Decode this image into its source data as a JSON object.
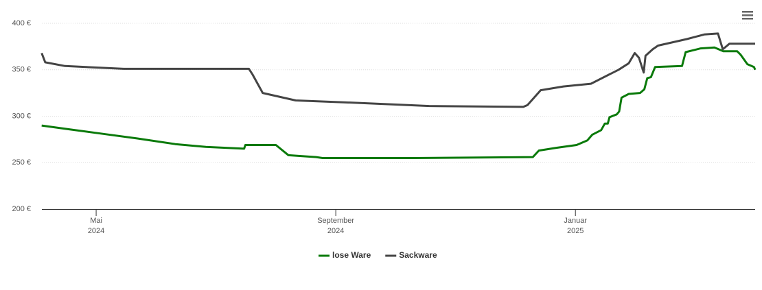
{
  "chart_data": {
    "type": "line",
    "xlim": [
      4.094,
      16.0
    ],
    "xticks": [
      {
        "value": 5,
        "label": [
          "Mai",
          "2024"
        ]
      },
      {
        "value": 9,
        "label": [
          "September",
          "2024"
        ]
      },
      {
        "value": 13,
        "label": [
          "Januar",
          "2025"
        ]
      }
    ],
    "ylim": [
      200,
      400
    ],
    "yticks": [
      {
        "value": 200,
        "label": "200 €"
      },
      {
        "value": 250,
        "label": "250 €"
      },
      {
        "value": 300,
        "label": "300 €"
      },
      {
        "value": 350,
        "label": "350 €"
      },
      {
        "value": 400,
        "label": "400 €"
      }
    ],
    "grid": true,
    "legend": "bottom",
    "series": [
      {
        "name": "lose Ware",
        "color": "#0a7a0a",
        "x": [
          4.09,
          4.54,
          5.11,
          5.69,
          6.32,
          6.83,
          7.47,
          7.49,
          8.0,
          8.21,
          8.67,
          8.78,
          10.28,
          12.29,
          12.39,
          12.68,
          13.02,
          13.2,
          13.28,
          13.43,
          13.49,
          13.54,
          13.57,
          13.69,
          13.73,
          13.77,
          13.89,
          14.08,
          14.15,
          14.2,
          14.26,
          14.33,
          14.78,
          14.84,
          15.09,
          15.32,
          15.47,
          15.7,
          15.76,
          15.87,
          15.98,
          16.0
        ],
        "values": [
          290,
          286,
          281,
          276,
          270,
          267,
          265,
          269,
          269,
          258,
          256,
          255,
          255,
          256,
          263,
          266,
          269,
          274,
          280,
          285,
          292,
          292,
          299,
          302,
          305,
          320,
          324,
          325,
          329,
          341,
          342,
          353,
          354,
          369,
          373,
          374,
          370,
          370,
          366,
          356,
          353,
          350
        ]
      },
      {
        "name": "Sackware",
        "color": "#444444",
        "x": [
          4.09,
          4.15,
          4.48,
          5.46,
          7.55,
          7.61,
          7.78,
          8.33,
          9.13,
          10.56,
          12.13,
          12.2,
          12.42,
          12.8,
          13.26,
          13.72,
          13.89,
          13.99,
          14.06,
          14.14,
          14.17,
          14.29,
          14.38,
          14.86,
          15.15,
          15.38,
          15.46,
          15.57,
          16.0
        ],
        "values": [
          368,
          358,
          354,
          351,
          351,
          345,
          325,
          317,
          315,
          311,
          310,
          312,
          328,
          332,
          335,
          350,
          357,
          368,
          363,
          347,
          365,
          372,
          376,
          383,
          388,
          389,
          372,
          378,
          378
        ]
      }
    ]
  }
}
